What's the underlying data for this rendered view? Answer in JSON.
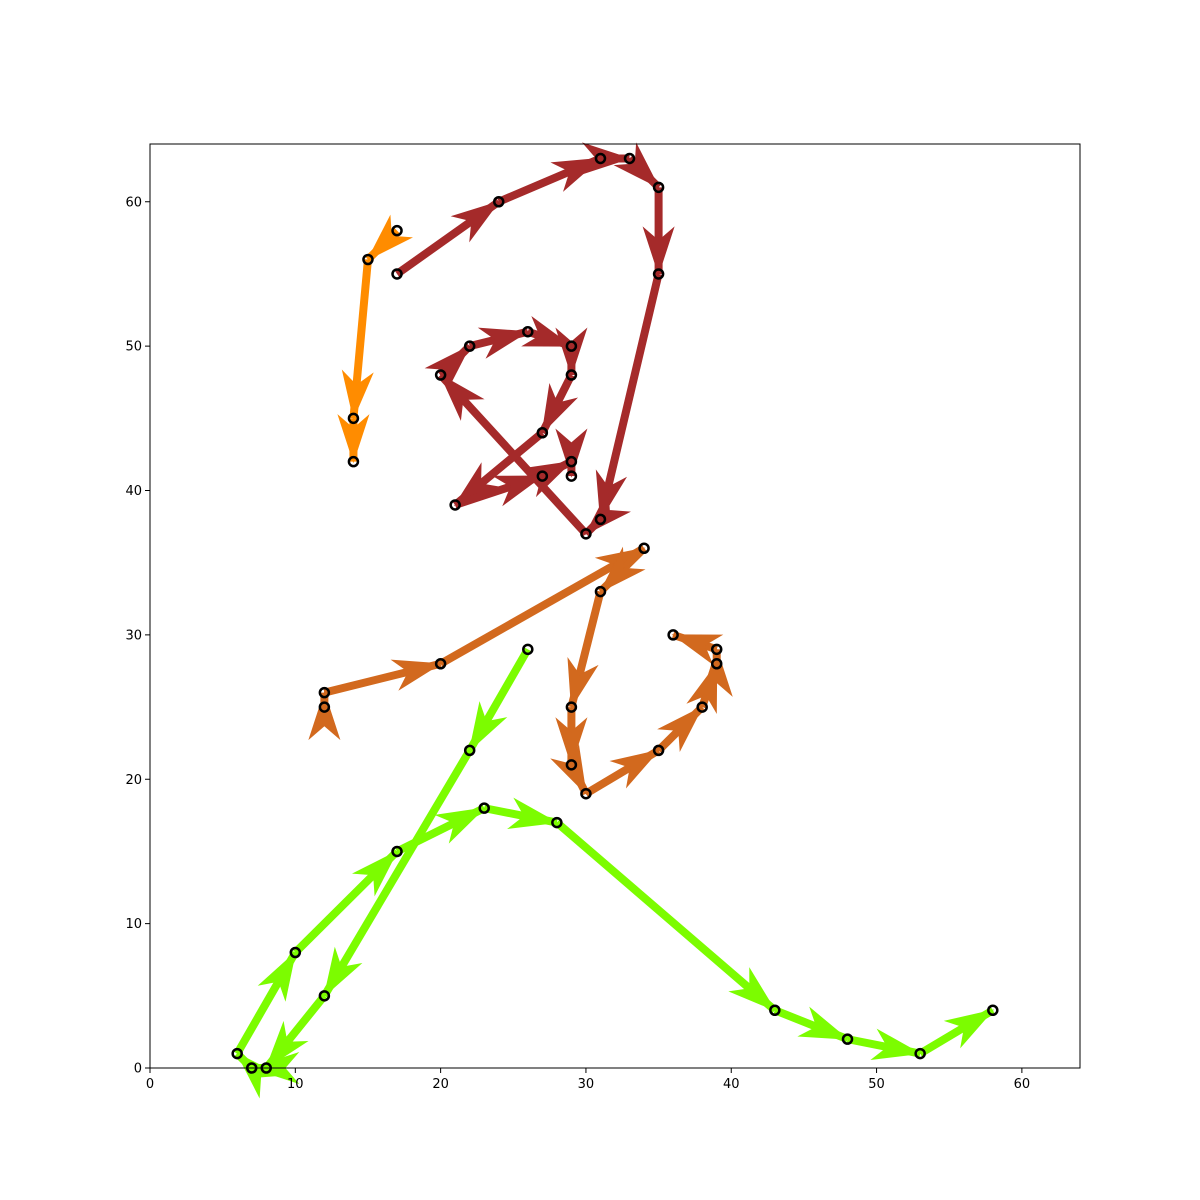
{
  "chart_data": {
    "type": "line",
    "title": "",
    "xlabel": "",
    "ylabel": "",
    "xlim": [
      0,
      64
    ],
    "ylim": [
      0,
      64
    ],
    "xticks": [
      0,
      10,
      20,
      30,
      40,
      50,
      60
    ],
    "yticks": [
      0,
      10,
      20,
      30,
      40,
      50,
      60
    ],
    "xtick_labels": [
      "0",
      "10",
      "20",
      "30",
      "40",
      "50",
      "60"
    ],
    "ytick_labels": [
      "0",
      "10",
      "20",
      "30",
      "40",
      "50",
      "60"
    ],
    "grid": false,
    "legend": "none",
    "marker_color": "#000000",
    "series": [
      {
        "color": "#ff8c00",
        "points": [
          [
            17,
            58
          ],
          [
            15,
            56
          ],
          [
            14,
            45
          ],
          [
            14,
            42
          ]
        ]
      },
      {
        "color": "#a52a2a",
        "points": [
          [
            17,
            55
          ],
          [
            24,
            60
          ],
          [
            31,
            63
          ],
          [
            33,
            63
          ],
          [
            35,
            61
          ],
          [
            35,
            55
          ],
          [
            31,
            38
          ],
          [
            30,
            37
          ],
          [
            20,
            48
          ],
          [
            22,
            50
          ],
          [
            26,
            51
          ],
          [
            29,
            50
          ],
          [
            29,
            48
          ],
          [
            27,
            44
          ],
          [
            21,
            39
          ],
          [
            27,
            41
          ],
          [
            29,
            42
          ],
          [
            29,
            41
          ]
        ]
      },
      {
        "color": "#d2691e",
        "points": [
          [
            12,
            25
          ],
          [
            12,
            26
          ],
          [
            20,
            28
          ],
          [
            34,
            36
          ],
          [
            31,
            33
          ],
          [
            29,
            25
          ],
          [
            29,
            21
          ],
          [
            30,
            19
          ],
          [
            35,
            22
          ],
          [
            38,
            25
          ],
          [
            39,
            28
          ],
          [
            39,
            29
          ],
          [
            36,
            30
          ]
        ]
      },
      {
        "color": "#7cfc00",
        "points": [
          [
            26,
            29
          ],
          [
            22,
            22
          ],
          [
            12,
            5
          ],
          [
            8,
            0
          ],
          [
            7,
            0
          ],
          [
            6,
            1
          ],
          [
            10,
            8
          ],
          [
            17,
            15
          ],
          [
            23,
            18
          ],
          [
            28,
            17
          ],
          [
            43,
            4
          ],
          [
            48,
            2
          ],
          [
            53,
            1
          ],
          [
            58,
            4
          ]
        ]
      }
    ]
  }
}
